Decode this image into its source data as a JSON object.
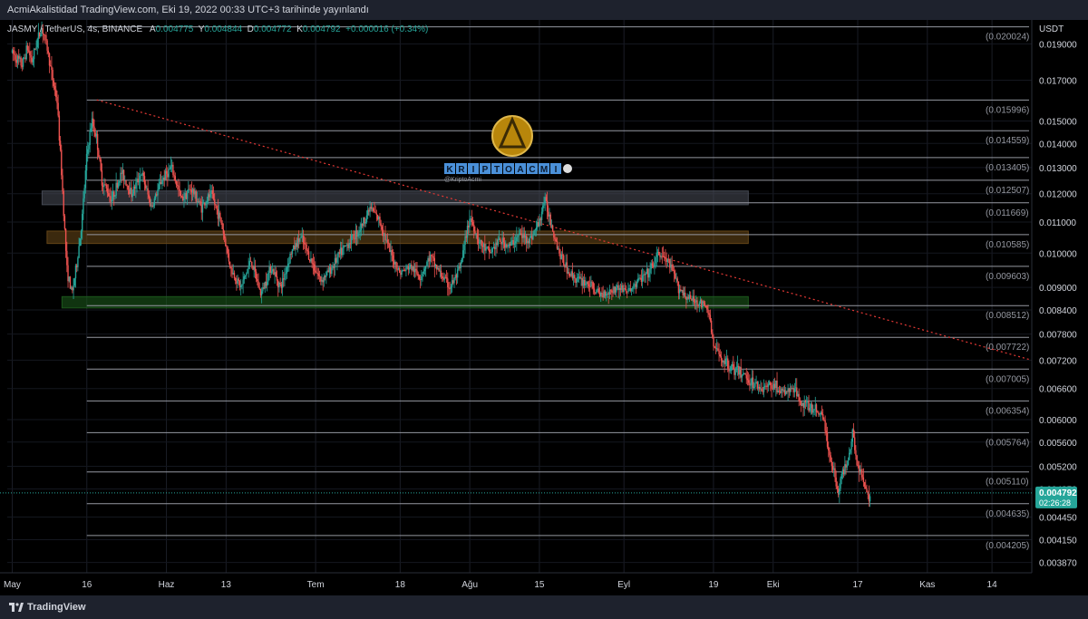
{
  "header": {
    "published": "AcmiAkalistidad TradingView.com, Eki 19, 2022 00:33 UTC+3 tarihinde yayınlandı"
  },
  "legend": {
    "symbol": "JASMY / TetherUS, 4s, BINANCE",
    "open_label": "A",
    "open": "0.004775",
    "high_label": "Y",
    "high": "0.004844",
    "low_label": "D",
    "low": "0.004772",
    "close_label": "K",
    "close": "0.004792",
    "change": "+0.000016 (+0.34%)"
  },
  "watermark": {
    "text": "KRIPTOACMI",
    "handle": "@KriptoAcmi"
  },
  "footer": {
    "brand": "TradingView"
  },
  "colors": {
    "up": "#26a69a",
    "down": "#ef5350",
    "trendline": "#e53935",
    "price_tag": "#26a69a"
  },
  "chart_data": {
    "type": "candlestick",
    "currency": "USDT",
    "ylim": [
      0.00375,
      0.02045
    ],
    "y_ticks": [
      "0.019000",
      "0.017000",
      "0.015000",
      "0.014000",
      "0.013000",
      "0.012000",
      "0.011000",
      "0.010000",
      "0.009000",
      "0.008400",
      "0.007800",
      "0.007200",
      "0.006600",
      "0.006000",
      "0.005600",
      "0.005200",
      "0.004850",
      "0.004450",
      "0.004150",
      "0.003870"
    ],
    "x_ticks": [
      {
        "label": "May",
        "t": 0
      },
      {
        "label": "16",
        "t": 15
      },
      {
        "label": "Haz",
        "t": 31
      },
      {
        "label": "13",
        "t": 43
      },
      {
        "label": "Tem",
        "t": 61
      },
      {
        "label": "18",
        "t": 78
      },
      {
        "label": "Ağu",
        "t": 92
      },
      {
        "label": "15",
        "t": 106
      },
      {
        "label": "Eyl",
        "t": 123
      },
      {
        "label": "19",
        "t": 141
      },
      {
        "label": "Eki",
        "t": 153
      },
      {
        "label": "17",
        "t": 170
      },
      {
        "label": "Kas",
        "t": 184
      },
      {
        "label": "14",
        "t": 197
      }
    ],
    "xlim": [
      -1,
      205
    ],
    "levels": [
      {
        "label": "(0.020024)",
        "value": 0.020024
      },
      {
        "label": "(0.015996)",
        "value": 0.015996
      },
      {
        "label": "(0.014559)",
        "value": 0.014559
      },
      {
        "label": "(0.013405)",
        "value": 0.013405
      },
      {
        "label": "(0.012507)",
        "value": 0.012507
      },
      {
        "label": "(0.011669)",
        "value": 0.011669
      },
      {
        "label": "(0.010585)",
        "value": 0.010585
      },
      {
        "label": "(0.009603)",
        "value": 0.009603
      },
      {
        "label": "(0.008512)",
        "value": 0.008512
      },
      {
        "label": "(0.007722)",
        "value": 0.007722
      },
      {
        "label": "(0.007005)",
        "value": 0.007005
      },
      {
        "label": "(0.006354)",
        "value": 0.006354
      },
      {
        "label": "(0.005764)",
        "value": 0.005764
      },
      {
        "label": "(0.005110)",
        "value": 0.00511
      },
      {
        "label": "(0.004635)",
        "value": 0.004635
      },
      {
        "label": "(0.004205)",
        "value": 0.004205
      }
    ],
    "zones": [
      {
        "low": 0.0116,
        "high": 0.0121,
        "t_start": 6,
        "t_end": 148,
        "color": "#4a4f5a"
      },
      {
        "low": 0.0103,
        "high": 0.0107,
        "t_start": 7,
        "t_end": 148,
        "color": "#6b4a1a"
      },
      {
        "low": 0.00845,
        "high": 0.00875,
        "t_start": 10,
        "t_end": 148,
        "color": "#1e5e1e"
      }
    ],
    "trendline": {
      "t_start": 17,
      "value_start": 0.016,
      "t_end": 205,
      "value_end": 0.0072
    },
    "current_price": {
      "value": 0.004792,
      "label": "0.004792",
      "countdown": "02:26:28"
    },
    "path_points": [
      [
        0,
        0.0185
      ],
      [
        2,
        0.0178
      ],
      [
        3,
        0.0188
      ],
      [
        4,
        0.018
      ],
      [
        5,
        0.0192
      ],
      [
        6,
        0.02
      ],
      [
        7,
        0.0188
      ],
      [
        8,
        0.0172
      ],
      [
        9,
        0.016
      ],
      [
        10,
        0.0125
      ],
      [
        11,
        0.0095
      ],
      [
        12,
        0.0088
      ],
      [
        13,
        0.0097
      ],
      [
        14,
        0.011
      ],
      [
        15,
        0.0135
      ],
      [
        16,
        0.015
      ],
      [
        17,
        0.0142
      ],
      [
        18,
        0.0125
      ],
      [
        20,
        0.0118
      ],
      [
        22,
        0.0128
      ],
      [
        24,
        0.012
      ],
      [
        26,
        0.0128
      ],
      [
        28,
        0.0115
      ],
      [
        30,
        0.0125
      ],
      [
        32,
        0.013
      ],
      [
        34,
        0.0118
      ],
      [
        36,
        0.0122
      ],
      [
        38,
        0.0115
      ],
      [
        40,
        0.012
      ],
      [
        42,
        0.011
      ],
      [
        44,
        0.0095
      ],
      [
        46,
        0.009
      ],
      [
        48,
        0.0098
      ],
      [
        50,
        0.0088
      ],
      [
        52,
        0.0096
      ],
      [
        54,
        0.009
      ],
      [
        56,
        0.01
      ],
      [
        58,
        0.0105
      ],
      [
        60,
        0.0098
      ],
      [
        62,
        0.0092
      ],
      [
        64,
        0.0095
      ],
      [
        66,
        0.01
      ],
      [
        68,
        0.0104
      ],
      [
        70,
        0.0108
      ],
      [
        72,
        0.0115
      ],
      [
        74,
        0.011
      ],
      [
        76,
        0.01
      ],
      [
        78,
        0.0094
      ],
      [
        80,
        0.0096
      ],
      [
        82,
        0.0093
      ],
      [
        84,
        0.0099
      ],
      [
        86,
        0.0094
      ],
      [
        88,
        0.009
      ],
      [
        90,
        0.0095
      ],
      [
        92,
        0.0112
      ],
      [
        94,
        0.0103
      ],
      [
        96,
        0.01
      ],
      [
        98,
        0.0104
      ],
      [
        100,
        0.0102
      ],
      [
        102,
        0.0106
      ],
      [
        104,
        0.0104
      ],
      [
        106,
        0.011
      ],
      [
        107,
        0.0118
      ],
      [
        108,
        0.0112
      ],
      [
        110,
        0.01
      ],
      [
        112,
        0.0094
      ],
      [
        114,
        0.0092
      ],
      [
        116,
        0.0091
      ],
      [
        118,
        0.0088
      ],
      [
        120,
        0.0089
      ],
      [
        122,
        0.009
      ],
      [
        124,
        0.0089
      ],
      [
        126,
        0.0092
      ],
      [
        128,
        0.0094
      ],
      [
        130,
        0.01
      ],
      [
        132,
        0.0097
      ],
      [
        134,
        0.009
      ],
      [
        136,
        0.0087
      ],
      [
        138,
        0.0086
      ],
      [
        140,
        0.0084
      ],
      [
        141,
        0.0075
      ],
      [
        143,
        0.0072
      ],
      [
        145,
        0.007
      ],
      [
        147,
        0.0069
      ],
      [
        149,
        0.0067
      ],
      [
        151,
        0.0066
      ],
      [
        153,
        0.0067
      ],
      [
        155,
        0.0065
      ],
      [
        157,
        0.0066
      ],
      [
        159,
        0.0063
      ],
      [
        161,
        0.0062
      ],
      [
        163,
        0.0061
      ],
      [
        164,
        0.0055
      ],
      [
        165,
        0.0052
      ],
      [
        166,
        0.0048
      ],
      [
        167,
        0.0051
      ],
      [
        168,
        0.0053
      ],
      [
        169,
        0.0058
      ],
      [
        170,
        0.0052
      ],
      [
        171,
        0.005
      ],
      [
        172,
        0.0047
      ],
      [
        172.5,
        0.004792
      ]
    ]
  }
}
